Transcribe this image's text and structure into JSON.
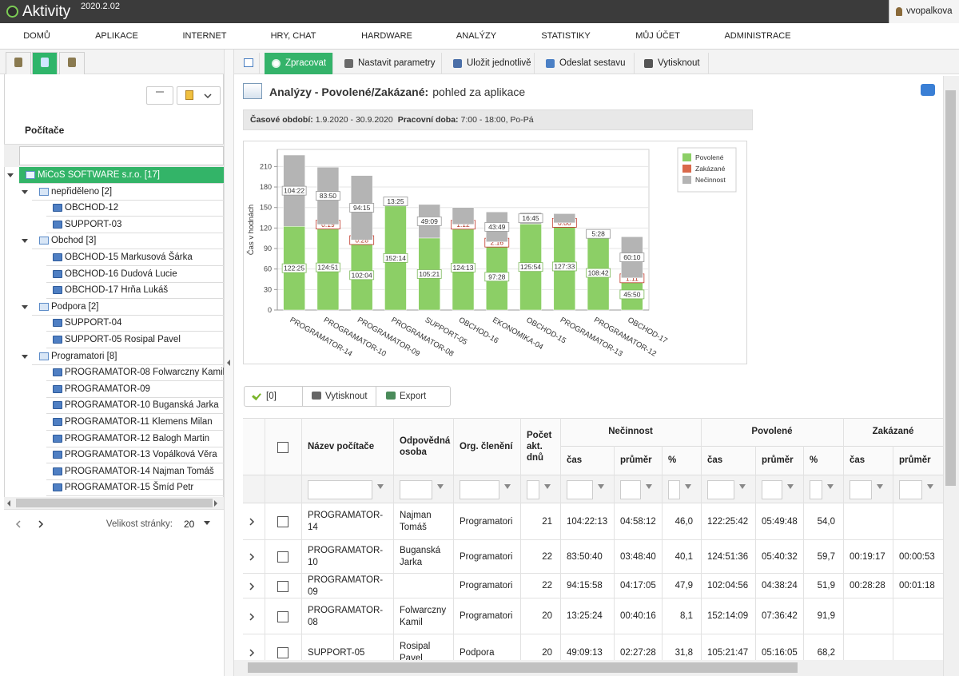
{
  "header": {
    "app_name": "Aktivity",
    "version": "2020.2.02",
    "user": "vvopalkova"
  },
  "nav": [
    "DOMŮ",
    "APLIKACE",
    "INTERNET",
    "HRY, CHAT",
    "HARDWARE",
    "ANALÝZY",
    "STATISTIKY",
    "MŮJ ÚČET",
    "ADMINISTRACE"
  ],
  "sidebar": {
    "title": "Počítače",
    "tree": [
      {
        "label": "MiCoS SOFTWARE s.r.o. [17]",
        "children": [
          {
            "label": "nepřiděleno [2]",
            "children": [
              "OBCHOD-12",
              "SUPPORT-03"
            ]
          },
          {
            "label": "Obchod [3]",
            "children": [
              "OBCHOD-15 Markusová Šárka",
              "OBCHOD-16 Dudová Lucie",
              "OBCHOD-17 Hrňa Lukáš"
            ]
          },
          {
            "label": "Podpora [2]",
            "children": [
              "SUPPORT-04",
              "SUPPORT-05 Rosipal Pavel"
            ]
          },
          {
            "label": "Programatori [8]",
            "children": [
              "PROGRAMATOR-08 Folwarczny Kamil",
              "PROGRAMATOR-09",
              "PROGRAMATOR-10 Buganská Jarka",
              "PROGRAMATOR-11 Klemens Milan",
              "PROGRAMATOR-12 Balogh Martin",
              "PROGRAMATOR-13 Vopálková Věra",
              "PROGRAMATOR-14 Najman Tomáš",
              "PROGRAMATOR-15 Šmíd Petr"
            ]
          }
        ]
      }
    ],
    "page_size_label": "Velikost stránky:",
    "page_size": 20
  },
  "toolbar": [
    "Zpracovat",
    "Nastavit parametry",
    "Uložit jednotlivě",
    "Odeslat sestavu",
    "Vytisknout"
  ],
  "report": {
    "title": "Analýzy - Povolené/Zakázané:",
    "subtitle": "pohled za aplikace",
    "period_label": "Časové období:",
    "period": "1.9.2020 - 30.9.2020",
    "worktime_label": "Pracovní doba:",
    "worktime": "7:00 - 18:00, Po-Pá"
  },
  "chart_data": {
    "type": "bar",
    "stacked": true,
    "y_label": "Čas v hodnách",
    "categories": [
      "PROGRAMATOR-14",
      "PROGRAMATOR-10",
      "PROGRAMATOR-09",
      "PROGRAMATOR-08",
      "SUPPORT-05",
      "OBCHOD-16",
      "EKONOMIKA-04",
      "OBCHOD-15",
      "PROGRAMATOR-13",
      "PROGRAMATOR-12",
      "OBCHOD-17"
    ],
    "series": [
      {
        "name": "Povolené",
        "color": "#8ccf66",
        "values": [
          122.42,
          124.85,
          102.07,
          152.23,
          105.35,
          124.22,
          97.47,
          125.9,
          127.55,
          108.7,
          45.83
        ],
        "value_labels": [
          "122:25",
          "124:51",
          "102:04",
          "152:14",
          "105:21",
          "124:13",
          "97:28",
          "125:54",
          "127:33",
          "108:42",
          "45:50"
        ]
      },
      {
        "name": "Zakázané",
        "color": "#d9694b",
        "values": [
          0,
          0.32,
          0.47,
          0,
          0,
          1.2,
          2.27,
          0,
          0,
          0,
          1.18
        ],
        "value_labels": [
          null,
          "0:19",
          "0:28",
          null,
          null,
          "1:12",
          "2:16",
          null,
          "0:00",
          null,
          "1:11"
        ]
      },
      {
        "name": "Nečinnost",
        "color": "#b4b4b4",
        "values": [
          104.37,
          83.83,
          94.25,
          13.42,
          49.15,
          24.6,
          43.82,
          16.75,
          13.5,
          5.47,
          60.17
        ],
        "value_labels": [
          "104:22",
          "83:50",
          "94:15",
          "13:25",
          "49:09",
          null,
          "43:49",
          "16:45",
          null,
          "5:28",
          "60:10"
        ]
      }
    ],
    "ylim": [
      0,
      235
    ],
    "yticks": [
      0,
      30,
      60,
      90,
      120,
      150,
      180,
      210
    ],
    "grid": true,
    "legend": "right"
  },
  "grid_toolbar": [
    "[0]",
    "Vytisknout",
    "Export"
  ],
  "table": {
    "columns": [
      "Název počítače",
      "Odpovědná osoba",
      "Org. členění",
      "Počet akt. dnů"
    ],
    "groups": [
      {
        "label": "Nečinnost",
        "columns": [
          "čas",
          "průměr",
          "%"
        ]
      },
      {
        "label": "Povolené",
        "columns": [
          "čas",
          "průměr",
          "%"
        ]
      },
      {
        "label": "Zakázané",
        "columns": [
          "čas",
          "průměr"
        ]
      }
    ],
    "rows": [
      [
        "PROGRAMATOR-14",
        "Najman Tomáš",
        "Programatori",
        21,
        "104:22:13",
        "04:58:12",
        "46,0",
        "122:25:42",
        "05:49:48",
        "54,0",
        null,
        null
      ],
      [
        "PROGRAMATOR-10",
        "Buganská Jarka",
        "Programatori",
        22,
        "83:50:40",
        "03:48:40",
        "40,1",
        "124:51:36",
        "05:40:32",
        "59,7",
        "00:19:17",
        "00:00:53"
      ],
      [
        "PROGRAMATOR-09",
        null,
        "Programatori",
        22,
        "94:15:58",
        "04:17:05",
        "47,9",
        "102:04:56",
        "04:38:24",
        "51,9",
        "00:28:28",
        "00:01:18"
      ],
      [
        "PROGRAMATOR-08",
        "Folwarczny Kamil",
        "Programatori",
        20,
        "13:25:24",
        "00:40:16",
        "8,1",
        "152:14:09",
        "07:36:42",
        "91,9",
        null,
        null
      ],
      [
        "SUPPORT-05",
        "Rosipal Pavel",
        "Podpora",
        20,
        "49:09:13",
        "02:27:28",
        "31,8",
        "105:21:47",
        "05:16:05",
        "68,2",
        null,
        null
      ]
    ]
  }
}
